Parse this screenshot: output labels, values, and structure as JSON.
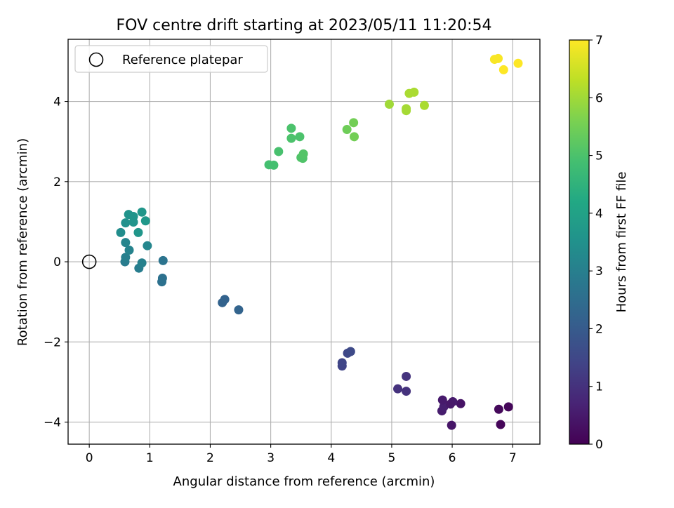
{
  "chart_data": {
    "type": "scatter",
    "title": "FOV centre drift starting at 2023/05/11 11:20:54",
    "xlabel": "Angular distance from reference (arcmin)",
    "ylabel": "Rotation from reference (arcmin)",
    "xlim": [
      -0.35,
      7.45
    ],
    "ylim": [
      -4.55,
      5.55
    ],
    "xticks": [
      0,
      1,
      2,
      3,
      4,
      5,
      6,
      7
    ],
    "xtick_labels": [
      "0",
      "1",
      "2",
      "3",
      "4",
      "5",
      "6",
      "7"
    ],
    "yticks": [
      -4,
      -2,
      0,
      2,
      4
    ],
    "ytick_labels": [
      "−4",
      "−2",
      "0",
      "2",
      "4"
    ],
    "grid": true,
    "legend": {
      "placement": "upper-left",
      "entries": [
        {
          "label": "Reference platepar",
          "marker": "open-circle"
        }
      ]
    },
    "reference_point": {
      "x": 0,
      "y": 0
    },
    "colorbar": {
      "label": "Hours from first FF file",
      "colormap": "viridis",
      "range": [
        0,
        7
      ],
      "ticks": [
        0,
        1,
        2,
        3,
        4,
        5,
        6,
        7
      ],
      "tick_labels": [
        "0",
        "1",
        "2",
        "3",
        "4",
        "5",
        "6",
        "7"
      ]
    },
    "points": [
      {
        "x": 6.8,
        "y": -4.06,
        "t": 0.1
      },
      {
        "x": 6.93,
        "y": -3.62,
        "t": 0.12
      },
      {
        "x": 6.77,
        "y": -3.68,
        "t": 0.15
      },
      {
        "x": 5.99,
        "y": -4.08,
        "t": 0.4
      },
      {
        "x": 6.14,
        "y": -3.54,
        "t": 0.35
      },
      {
        "x": 6.01,
        "y": -3.49,
        "t": 0.5
      },
      {
        "x": 5.83,
        "y": -3.72,
        "t": 0.55
      },
      {
        "x": 5.86,
        "y": -3.62,
        "t": 0.6
      },
      {
        "x": 5.84,
        "y": -3.45,
        "t": 0.5
      },
      {
        "x": 5.97,
        "y": -3.55,
        "t": 0.45
      },
      {
        "x": 5.1,
        "y": -3.17,
        "t": 1.0
      },
      {
        "x": 5.24,
        "y": -3.23,
        "t": 1.0
      },
      {
        "x": 5.24,
        "y": -2.86,
        "t": 1.05
      },
      {
        "x": 4.18,
        "y": -2.6,
        "t": 1.4
      },
      {
        "x": 4.18,
        "y": -2.52,
        "t": 1.45
      },
      {
        "x": 4.27,
        "y": -2.28,
        "t": 1.5
      },
      {
        "x": 4.32,
        "y": -2.24,
        "t": 1.55
      },
      {
        "x": 2.2,
        "y": -1.02,
        "t": 2.2
      },
      {
        "x": 2.24,
        "y": -0.94,
        "t": 2.2
      },
      {
        "x": 2.47,
        "y": -1.2,
        "t": 2.25
      },
      {
        "x": 1.2,
        "y": -0.5,
        "t": 2.6
      },
      {
        "x": 1.21,
        "y": -0.41,
        "t": 2.6
      },
      {
        "x": 1.22,
        "y": 0.03,
        "t": 2.7
      },
      {
        "x": 0.59,
        "y": 0.0,
        "t": 2.9
      },
      {
        "x": 0.6,
        "y": 0.11,
        "t": 3.0
      },
      {
        "x": 0.66,
        "y": 0.29,
        "t": 3.1
      },
      {
        "x": 0.6,
        "y": 0.48,
        "t": 3.15
      },
      {
        "x": 0.82,
        "y": -0.16,
        "t": 2.95
      },
      {
        "x": 0.87,
        "y": -0.03,
        "t": 3.05
      },
      {
        "x": 0.96,
        "y": 0.4,
        "t": 3.2
      },
      {
        "x": 0.52,
        "y": 0.73,
        "t": 3.4
      },
      {
        "x": 0.6,
        "y": 0.97,
        "t": 3.5
      },
      {
        "x": 0.65,
        "y": 1.18,
        "t": 3.55
      },
      {
        "x": 0.73,
        "y": 1.13,
        "t": 3.6
      },
      {
        "x": 0.73,
        "y": 0.99,
        "t": 3.6
      },
      {
        "x": 0.81,
        "y": 0.73,
        "t": 3.65
      },
      {
        "x": 0.87,
        "y": 1.24,
        "t": 3.65
      },
      {
        "x": 0.93,
        "y": 1.02,
        "t": 3.7
      },
      {
        "x": 2.97,
        "y": 2.42,
        "t": 4.9
      },
      {
        "x": 3.05,
        "y": 2.41,
        "t": 4.9
      },
      {
        "x": 3.13,
        "y": 2.75,
        "t": 4.95
      },
      {
        "x": 3.34,
        "y": 3.33,
        "t": 5.0
      },
      {
        "x": 3.34,
        "y": 3.08,
        "t": 5.0
      },
      {
        "x": 3.48,
        "y": 3.12,
        "t": 5.0
      },
      {
        "x": 3.5,
        "y": 2.6,
        "t": 5.05
      },
      {
        "x": 3.53,
        "y": 2.58,
        "t": 5.05
      },
      {
        "x": 3.54,
        "y": 2.69,
        "t": 5.1
      },
      {
        "x": 4.26,
        "y": 3.3,
        "t": 5.45
      },
      {
        "x": 4.37,
        "y": 3.47,
        "t": 5.5
      },
      {
        "x": 4.38,
        "y": 3.12,
        "t": 5.5
      },
      {
        "x": 4.96,
        "y": 3.93,
        "t": 6.0
      },
      {
        "x": 5.24,
        "y": 3.77,
        "t": 6.05
      },
      {
        "x": 5.24,
        "y": 3.82,
        "t": 6.05
      },
      {
        "x": 5.29,
        "y": 4.2,
        "t": 6.1
      },
      {
        "x": 5.37,
        "y": 4.23,
        "t": 6.1
      },
      {
        "x": 5.54,
        "y": 3.9,
        "t": 6.1
      },
      {
        "x": 6.7,
        "y": 5.05,
        "t": 6.95
      },
      {
        "x": 6.76,
        "y": 5.07,
        "t": 6.95
      },
      {
        "x": 6.85,
        "y": 4.79,
        "t": 7.0
      },
      {
        "x": 7.09,
        "y": 4.95,
        "t": 7.0
      }
    ]
  }
}
